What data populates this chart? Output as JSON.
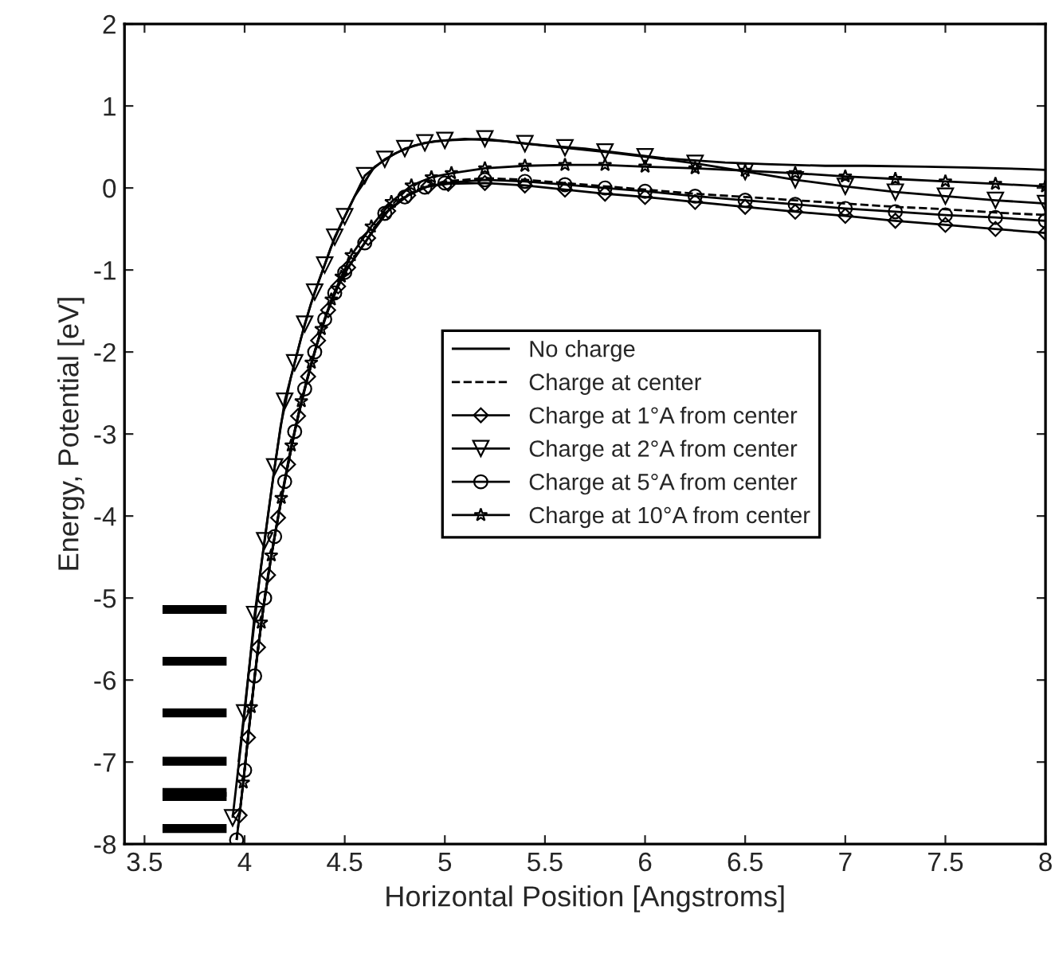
{
  "chart_data": {
    "type": "line",
    "xlabel": "Horizontal Position [Angstroms]",
    "ylabel": "Energy, Potential [eV]",
    "xlim": [
      3.4,
      8
    ],
    "ylim": [
      -8,
      2
    ],
    "xticks": [
      3.5,
      4,
      4.5,
      5,
      5.5,
      6,
      6.5,
      7,
      7.5,
      8
    ],
    "yticks": [
      -8,
      -7,
      -6,
      -5,
      -4,
      -3,
      -2,
      -1,
      0,
      1,
      2
    ],
    "grid": false,
    "legend": "center",
    "series": [
      {
        "name": "No charge",
        "color": "#000000",
        "marker": "none",
        "line_style": "solid",
        "x": [
          3.97,
          4.03,
          4.08,
          4.13,
          4.18,
          4.23,
          4.28,
          4.33,
          4.38,
          4.43,
          4.48,
          4.55,
          4.65,
          4.75,
          4.85,
          4.95,
          5.1,
          5.3,
          5.5,
          5.7,
          5.9,
          6.1,
          6.4,
          6.6,
          6.9,
          7.1,
          7.4,
          7.6,
          7.9,
          8.0
        ],
        "values": [
          -7.0,
          -5.7,
          -4.65,
          -3.75,
          -2.9,
          -2.32,
          -1.85,
          -1.42,
          -1.07,
          -0.73,
          -0.45,
          -0.1,
          0.26,
          0.42,
          0.52,
          0.57,
          0.6,
          0.57,
          0.52,
          0.48,
          0.42,
          0.36,
          0.31,
          0.29,
          0.27,
          0.27,
          0.26,
          0.25,
          0.23,
          0.22
        ]
      },
      {
        "name": "Charge at center",
        "color": "#000000",
        "marker": "none",
        "line_style": "dashed",
        "x": [
          3.96,
          4.0,
          4.05,
          4.1,
          4.15,
          4.2,
          4.25,
          4.3,
          4.35,
          4.4,
          4.45,
          4.5,
          4.6,
          4.7,
          4.8,
          4.9,
          5.0,
          5.2,
          5.4,
          5.6,
          5.8,
          6.0,
          6.25,
          6.5,
          6.75,
          7.0,
          7.25,
          7.5,
          7.75,
          8.0
        ],
        "values": [
          -7.95,
          -7.1,
          -5.95,
          -5.0,
          -4.25,
          -3.58,
          -2.97,
          -2.45,
          -2.0,
          -1.6,
          -1.28,
          -1.03,
          -0.67,
          -0.3,
          -0.1,
          0.02,
          0.08,
          0.12,
          0.1,
          0.06,
          0.02,
          -0.02,
          -0.07,
          -0.11,
          -0.15,
          -0.19,
          -0.23,
          -0.26,
          -0.3,
          -0.33
        ]
      },
      {
        "name": "Charge at 1°A from center",
        "color": "#000000",
        "marker": "diamond",
        "line_style": "solid",
        "x": [
          3.975,
          4.017,
          4.067,
          4.117,
          4.167,
          4.217,
          4.267,
          4.317,
          4.367,
          4.417,
          4.467,
          4.517,
          4.617,
          4.717,
          4.817,
          4.917,
          5.017,
          5.2,
          5.4,
          5.6,
          5.8,
          6.0,
          6.25,
          6.5,
          6.75,
          7.0,
          7.25,
          7.5,
          7.75,
          8.0
        ],
        "values": [
          -7.65,
          -6.7,
          -5.6,
          -4.72,
          -4.02,
          -3.37,
          -2.78,
          -2.3,
          -1.86,
          -1.49,
          -1.2,
          -0.97,
          -0.61,
          -0.28,
          -0.09,
          0.02,
          0.05,
          0.06,
          0.03,
          -0.02,
          -0.07,
          -0.11,
          -0.17,
          -0.23,
          -0.29,
          -0.34,
          -0.4,
          -0.45,
          -0.5,
          -0.55
        ]
      },
      {
        "name": "Charge at 2°A from center",
        "color": "#000000",
        "marker": "triangle",
        "line_style": "solid",
        "x": [
          3.94,
          4.0,
          4.05,
          4.1,
          4.15,
          4.2,
          4.25,
          4.3,
          4.35,
          4.4,
          4.45,
          4.5,
          4.6,
          4.7,
          4.8,
          4.9,
          5.0,
          5.2,
          5.4,
          5.6,
          5.8,
          6.0,
          6.25,
          6.5,
          6.75,
          7.0,
          7.25,
          7.5,
          7.75,
          8.0
        ],
        "values": [
          -7.68,
          -6.4,
          -5.2,
          -4.3,
          -3.4,
          -2.6,
          -2.13,
          -1.66,
          -1.27,
          -0.94,
          -0.6,
          -0.35,
          0.15,
          0.35,
          0.48,
          0.55,
          0.58,
          0.6,
          0.54,
          0.49,
          0.44,
          0.38,
          0.3,
          0.2,
          0.1,
          0.02,
          -0.05,
          -0.1,
          -0.15,
          -0.19
        ]
      },
      {
        "name": "Charge at 5°A from center",
        "color": "#000000",
        "marker": "circle",
        "line_style": "solid",
        "x": [
          3.96,
          4.0,
          4.05,
          4.1,
          4.15,
          4.2,
          4.25,
          4.3,
          4.35,
          4.4,
          4.45,
          4.5,
          4.6,
          4.7,
          4.8,
          4.9,
          5.0,
          5.2,
          5.4,
          5.6,
          5.8,
          6.0,
          6.25,
          6.5,
          6.75,
          7.0,
          7.25,
          7.5,
          7.75,
          8.0
        ],
        "values": [
          -7.95,
          -7.1,
          -5.95,
          -5.0,
          -4.25,
          -3.58,
          -2.97,
          -2.45,
          -2.0,
          -1.6,
          -1.28,
          -1.03,
          -0.67,
          -0.31,
          -0.11,
          0.01,
          0.06,
          0.1,
          0.08,
          0.04,
          0.0,
          -0.04,
          -0.1,
          -0.15,
          -0.2,
          -0.25,
          -0.29,
          -0.33,
          -0.36,
          -0.4
        ]
      },
      {
        "name": "Charge at 10°A from center",
        "color": "#000000",
        "marker": "star",
        "line_style": "solid",
        "x": [
          3.993,
          4.033,
          4.083,
          4.133,
          4.183,
          4.233,
          4.283,
          4.333,
          4.383,
          4.433,
          4.483,
          4.533,
          4.633,
          4.733,
          4.833,
          4.933,
          5.033,
          5.2,
          5.4,
          5.6,
          5.8,
          6.0,
          6.25,
          6.5,
          6.75,
          7.0,
          7.25,
          7.5,
          7.75,
          8.0
        ],
        "values": [
          -7.25,
          -6.33,
          -5.3,
          -4.48,
          -3.78,
          -3.14,
          -2.6,
          -2.13,
          -1.72,
          -1.36,
          -1.08,
          -0.82,
          -0.47,
          -0.17,
          0.03,
          0.13,
          0.18,
          0.24,
          0.27,
          0.28,
          0.28,
          0.26,
          0.24,
          0.21,
          0.18,
          0.14,
          0.11,
          0.08,
          0.05,
          0.02
        ]
      },
      {
        "color": "#000000",
        "marker": "none",
        "line_style": "solid",
        "x": [
          3.59,
          3.91
        ],
        "values": [
          -5.14,
          -5.14
        ]
      },
      {
        "color": "#000000",
        "marker": "none",
        "line_style": "solid",
        "x": [
          3.59,
          3.91
        ],
        "values": [
          -5.77,
          -5.77
        ]
      },
      {
        "color": "#000000",
        "marker": "none",
        "line_style": "solid",
        "x": [
          3.59,
          3.91
        ],
        "values": [
          -6.4,
          -6.4
        ]
      },
      {
        "color": "#000000",
        "marker": "none",
        "line_style": "solid",
        "x": [
          3.59,
          3.91
        ],
        "values": [
          -6.99,
          -6.99
        ]
      },
      {
        "color": "#000000",
        "marker": "none",
        "line_style": "solid",
        "x": [
          3.59,
          3.91
        ],
        "values": [
          -7.37,
          -7.37
        ]
      },
      {
        "color": "#000000",
        "marker": "none",
        "line_style": "solid",
        "x": [
          3.59,
          3.91
        ],
        "values": [
          -7.42,
          -7.42
        ]
      },
      {
        "color": "#000000",
        "marker": "none",
        "line_style": "solid",
        "x": [
          3.59,
          3.91
        ],
        "values": [
          -7.81,
          -7.81
        ]
      }
    ]
  }
}
